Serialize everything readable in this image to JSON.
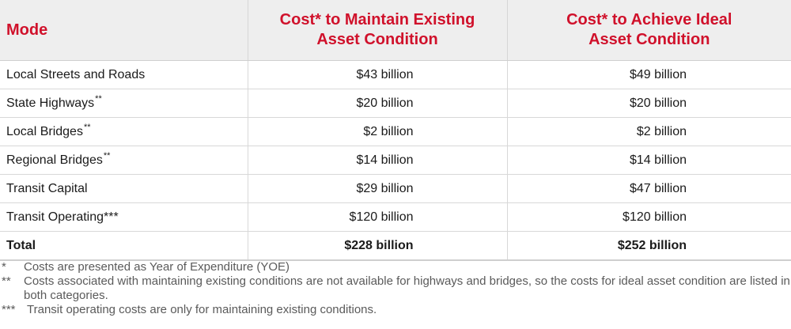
{
  "table": {
    "headers": {
      "mode": "Mode",
      "maintain_line1": "Cost* to Maintain Existing",
      "maintain_line2": "Asset Condition",
      "ideal_line1": "Cost* to Achieve Ideal",
      "ideal_line2": "Asset Condition"
    },
    "rows": [
      {
        "mode": "Local Streets and Roads",
        "marker": "",
        "maintain": "$43 billion",
        "ideal": "$49 billion"
      },
      {
        "mode": "State Highways",
        "marker": "**",
        "maintain": "$20 billion",
        "ideal": "$20 billion"
      },
      {
        "mode": "Local Bridges",
        "marker": "**",
        "maintain": "$2 billion",
        "ideal": "$2 billion"
      },
      {
        "mode": "Regional Bridges",
        "marker": "**",
        "maintain": "$14 billion",
        "ideal": "$14 billion"
      },
      {
        "mode": "Transit Capital",
        "marker": "",
        "maintain": "$29 billion",
        "ideal": "$47 billion"
      },
      {
        "mode": "Transit Operating***",
        "marker": "",
        "maintain": "$120 billion",
        "ideal": "$120 billion"
      }
    ],
    "total": {
      "mode": "Total",
      "maintain": "$228 billion",
      "ideal": "$252 billion"
    }
  },
  "footnotes": [
    {
      "mark": "*",
      "text": "Costs are presented as Year of Expenditure (YOE)"
    },
    {
      "mark": "**",
      "text": "Costs associated with maintaining existing conditions are not available for highways and bridges, so the costs for ideal asset condition are listed in both categories."
    },
    {
      "mark": "***",
      "text": "Transit operating costs are only for maintaining existing conditions."
    }
  ],
  "colors": {
    "header_text": "#d0112b",
    "header_bg": "#eeeeee",
    "body_text": "#1a1a1a",
    "footnote_text": "#5a5a5a"
  }
}
